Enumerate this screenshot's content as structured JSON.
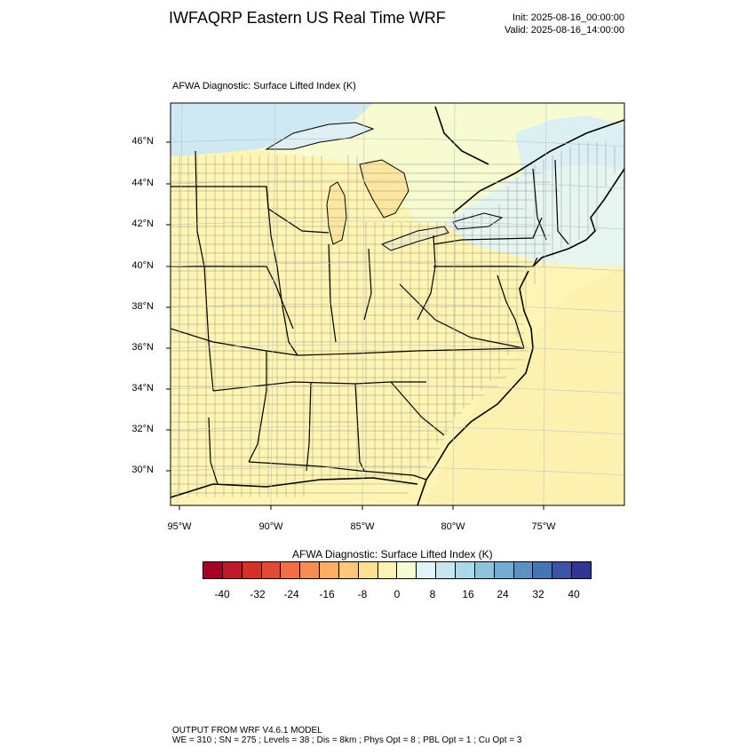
{
  "header": {
    "title": "IWFAQRP Eastern US Real Time WRF",
    "init": "Init: 2025-08-16_00:00:00",
    "valid": "Valid: 2025-08-16_14:00:00"
  },
  "map": {
    "subtitle": "AFWA Diagnostic: Surface Lifted Index   (K)",
    "lat_labels": [
      "46°N",
      "44°N",
      "42°N",
      "40°N",
      "38°N",
      "36°N",
      "34°N",
      "32°N",
      "30°N"
    ],
    "lon_labels": [
      "95°W",
      "90°W",
      "85°W",
      "80°W",
      "75°W"
    ],
    "colors": {
      "land_main": "#fef5b5",
      "land_stable": "#f7fbd0",
      "cool_light": "#e7f5f0",
      "cool_blue": "#cfe9f3",
      "ocean": "#fdf1b0"
    }
  },
  "colorbar": {
    "title": "AFWA Diagnostic: Surface Lifted Index  (K)",
    "tick_labels": [
      "-40",
      "-32",
      "-24",
      "-16",
      "-8",
      "0",
      "8",
      "16",
      "24",
      "32",
      "40"
    ],
    "colors": [
      "#a50026",
      "#be1a28",
      "#d73027",
      "#e34a33",
      "#f46d43",
      "#f88d52",
      "#fdae61",
      "#fec77a",
      "#fee090",
      "#fff2b2",
      "#f7fcd0",
      "#e0f3f8",
      "#c8e6f0",
      "#abd9e9",
      "#8fc3dd",
      "#74add1",
      "#5d91c3",
      "#4575b4",
      "#3b54a4",
      "#313695"
    ]
  },
  "footer": {
    "line1": "OUTPUT FROM WRF V4.6.1 MODEL",
    "line2": "WE = 310 ; SN = 275 ; Levels = 38 ; Dis = 8km ; Phys Opt = 8 ; PBL Opt = 1 ; Cu Opt = 3"
  }
}
